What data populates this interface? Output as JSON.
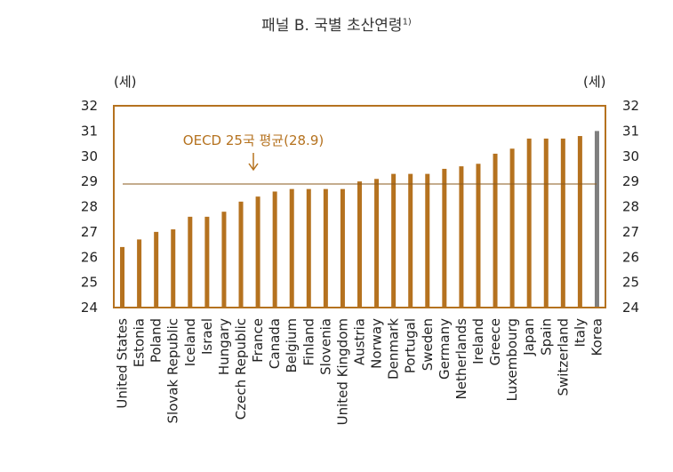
{
  "chart_data": {
    "type": "bar",
    "title": "패널 B. 국별 초산연령",
    "title_superscript": "1)",
    "ylabel_left": "(세)",
    "ylabel_right": "(세)",
    "ylim": [
      24,
      32
    ],
    "yticks": [
      24,
      25,
      26,
      27,
      28,
      29,
      30,
      31,
      32
    ],
    "categories": [
      "United States",
      "Estonia",
      "Poland",
      "Slovak Republic",
      "Iceland",
      "Israel",
      "Hungary",
      "Czech Republic",
      "France",
      "Canada",
      "Belgium",
      "Finland",
      "Slovenia",
      "United Kingdom",
      "Austria",
      "Norway",
      "Denmark",
      "Portugal",
      "Sweden",
      "Germany",
      "Netherlands",
      "Ireland",
      "Greece",
      "Luxembourg",
      "Japan",
      "Spain",
      "Switzerland",
      "Italy",
      "Korea"
    ],
    "values": [
      26.4,
      26.7,
      27.0,
      27.1,
      27.6,
      27.6,
      27.8,
      28.2,
      28.4,
      28.6,
      28.7,
      28.7,
      28.7,
      28.7,
      29.0,
      29.1,
      29.3,
      29.3,
      29.3,
      29.5,
      29.6,
      29.7,
      30.1,
      30.3,
      30.7,
      30.7,
      30.7,
      30.8,
      31.0
    ],
    "highlight_category": "Korea",
    "average_line": {
      "value": 28.9,
      "label": "OECD 25국 평균(28.9)"
    },
    "colors": {
      "bar": "#B5721F",
      "highlight": "#7F7F7F",
      "frame": "#B5721F",
      "average": "#8A5A1E",
      "annotation": "#B5721F"
    },
    "grid": false
  }
}
